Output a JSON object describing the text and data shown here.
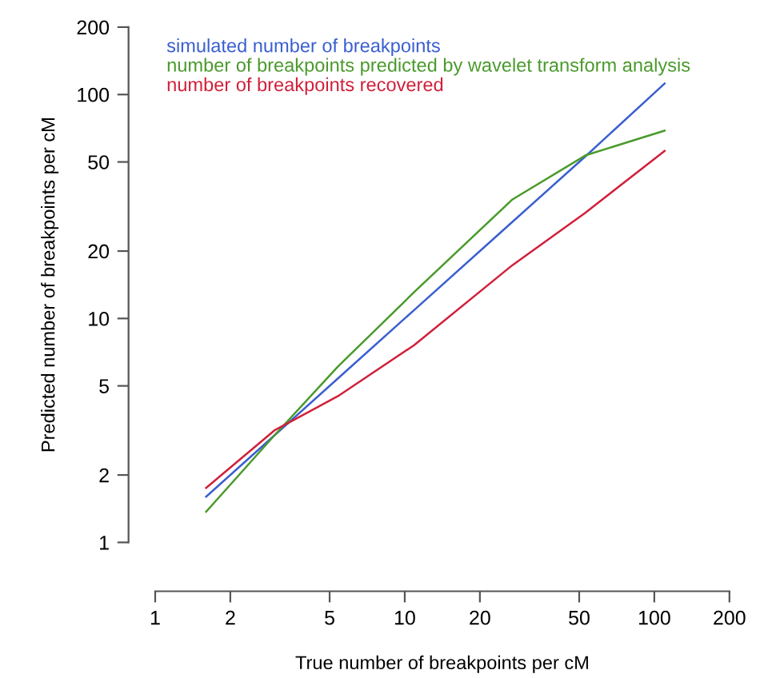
{
  "chart_data": {
    "type": "line",
    "xlabel": "True number of breakpoints per cM",
    "ylabel": "Predicted number of breakpoints per cM",
    "x": [
      1.6,
      3.0,
      5.4,
      10.9,
      27,
      53,
      110
    ],
    "series": [
      {
        "name": "simulated number of breakpoints",
        "color": "#3a5fd0",
        "values": [
          1.6,
          3.0,
          5.4,
          10.9,
          27,
          53,
          112
        ]
      },
      {
        "name": "number of breakpoints predicted by wavelet transform analysis",
        "color": "#4a9a2c",
        "values": [
          1.37,
          3.0,
          6.1,
          13.1,
          34,
          53.5,
          69
        ]
      },
      {
        "name": "number of breakpoints recovered",
        "color": "#d0203a",
        "values": [
          1.75,
          3.16,
          4.5,
          7.6,
          17.3,
          29.7,
          56
        ]
      }
    ],
    "log": "xy",
    "xlim": [
      1,
      200
    ],
    "ylim": [
      1,
      200
    ],
    "xticks": [
      1,
      2,
      5,
      10,
      20,
      50,
      100,
      200
    ],
    "yticks": [
      1,
      2,
      5,
      10,
      20,
      50,
      100,
      200
    ],
    "legend": "top left",
    "grid": false
  }
}
